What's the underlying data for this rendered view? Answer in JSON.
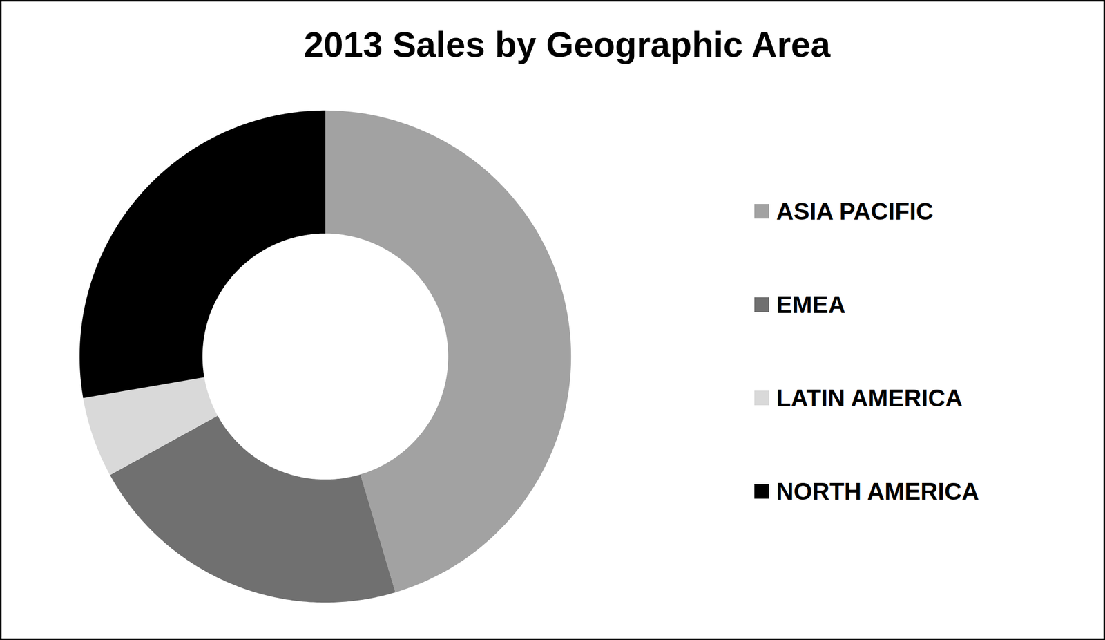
{
  "chart_data": {
    "type": "donut",
    "title": "2013 Sales by Geographic Area",
    "categories": [
      "ASIA PACIFIC",
      "EMEA",
      "LATIN AMERICA",
      "NORTH AMERICA"
    ],
    "values": [
      45.4,
      21.6,
      5.3,
      27.7
    ],
    "colors": [
      "#a2a2a2",
      "#707070",
      "#d9d9d9",
      "#000000"
    ],
    "legend": "right"
  }
}
